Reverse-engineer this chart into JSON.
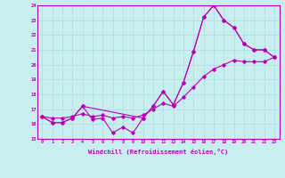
{
  "bg_color": "#c8eef0",
  "grid_color": "#aadddd",
  "line_color": "#bb00bb",
  "xlabel": "Windchill (Refroidissement éolien,°C)",
  "xlim": [
    -0.5,
    23.5
  ],
  "ylim": [
    15,
    24
  ],
  "yticks": [
    15,
    16,
    17,
    18,
    19,
    20,
    21,
    22,
    23,
    24
  ],
  "xticks": [
    0,
    1,
    2,
    3,
    4,
    5,
    6,
    7,
    8,
    9,
    10,
    11,
    12,
    13,
    14,
    15,
    16,
    17,
    18,
    19,
    20,
    21,
    22,
    23
  ],
  "line1_x": [
    0,
    1,
    2,
    3,
    4,
    5,
    6,
    7,
    8,
    9,
    10,
    11,
    12,
    13,
    14,
    15,
    16,
    17,
    18,
    19,
    20,
    21,
    22,
    23
  ],
  "line1_y": [
    16.5,
    16.1,
    16.1,
    16.4,
    17.2,
    16.3,
    16.4,
    15.4,
    15.8,
    15.4,
    16.4,
    17.2,
    18.2,
    17.3,
    18.8,
    20.9,
    23.2,
    24.0,
    23.0,
    22.5,
    21.4,
    21.0,
    21.0,
    20.5
  ],
  "line2_x": [
    0,
    1,
    2,
    3,
    4,
    10,
    11,
    12,
    13,
    14,
    15,
    16,
    17,
    18,
    19,
    20,
    21,
    22,
    23
  ],
  "line2_y": [
    16.5,
    16.1,
    16.1,
    16.4,
    17.2,
    16.4,
    17.2,
    18.2,
    17.3,
    18.8,
    20.9,
    23.2,
    24.0,
    23.0,
    22.5,
    21.4,
    21.0,
    21.0,
    20.5
  ],
  "line3_x": [
    0,
    1,
    2,
    3,
    4,
    5,
    6,
    7,
    8,
    9,
    10,
    11,
    12,
    13,
    14,
    15,
    16,
    17,
    18,
    19,
    20,
    21,
    22,
    23
  ],
  "line3_y": [
    16.5,
    16.4,
    16.4,
    16.5,
    16.7,
    16.5,
    16.6,
    16.4,
    16.5,
    16.4,
    16.6,
    17.0,
    17.4,
    17.2,
    17.8,
    18.5,
    19.2,
    19.7,
    20.0,
    20.3,
    20.2,
    20.2,
    20.2,
    20.5
  ]
}
